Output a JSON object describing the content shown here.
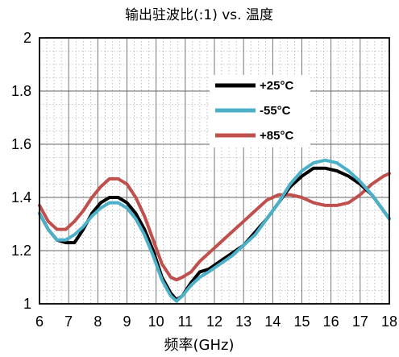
{
  "chart_data": {
    "type": "line",
    "title": "输出驻波比(:1) vs. 温度",
    "xlabel": "频率(GHz)",
    "ylabel": "",
    "xlim": [
      6,
      18
    ],
    "ylim": [
      1,
      2
    ],
    "x_ticks": [
      "6",
      "7",
      "8",
      "9",
      "10",
      "11",
      "12",
      "13",
      "14",
      "15",
      "16",
      "17",
      "18"
    ],
    "y_ticks": [
      "1",
      "1.2",
      "1.4",
      "1.6",
      "1.8",
      "2"
    ],
    "x_minor_step": 0.25,
    "y_minor_step": 0.05,
    "grid": true,
    "legend_position": "top-right",
    "series": [
      {
        "name": "+25°C",
        "color": "#000000",
        "points": [
          [
            6.0,
            1.34
          ],
          [
            6.3,
            1.28
          ],
          [
            6.6,
            1.24
          ],
          [
            6.9,
            1.23
          ],
          [
            7.2,
            1.23
          ],
          [
            7.5,
            1.28
          ],
          [
            7.8,
            1.34
          ],
          [
            8.1,
            1.38
          ],
          [
            8.4,
            1.4
          ],
          [
            8.7,
            1.4
          ],
          [
            9.0,
            1.38
          ],
          [
            9.3,
            1.34
          ],
          [
            9.6,
            1.28
          ],
          [
            9.9,
            1.2
          ],
          [
            10.2,
            1.1
          ],
          [
            10.5,
            1.04
          ],
          [
            10.7,
            1.015
          ],
          [
            10.9,
            1.03
          ],
          [
            11.2,
            1.08
          ],
          [
            11.5,
            1.12
          ],
          [
            11.8,
            1.13
          ],
          [
            12.2,
            1.16
          ],
          [
            12.6,
            1.19
          ],
          [
            13.0,
            1.22
          ],
          [
            13.4,
            1.27
          ],
          [
            13.8,
            1.32
          ],
          [
            14.2,
            1.38
          ],
          [
            14.6,
            1.44
          ],
          [
            15.0,
            1.48
          ],
          [
            15.4,
            1.51
          ],
          [
            15.8,
            1.51
          ],
          [
            16.2,
            1.5
          ],
          [
            16.6,
            1.48
          ],
          [
            17.0,
            1.45
          ],
          [
            17.4,
            1.41
          ],
          [
            17.8,
            1.35
          ],
          [
            18.0,
            1.32
          ]
        ]
      },
      {
        "name": "-55°C",
        "color": "#4bb0c8",
        "points": [
          [
            6.0,
            1.34
          ],
          [
            6.3,
            1.28
          ],
          [
            6.6,
            1.24
          ],
          [
            6.9,
            1.24
          ],
          [
            7.2,
            1.26
          ],
          [
            7.5,
            1.29
          ],
          [
            7.8,
            1.33
          ],
          [
            8.1,
            1.36
          ],
          [
            8.4,
            1.38
          ],
          [
            8.7,
            1.38
          ],
          [
            9.0,
            1.36
          ],
          [
            9.3,
            1.32
          ],
          [
            9.6,
            1.26
          ],
          [
            9.9,
            1.18
          ],
          [
            10.2,
            1.09
          ],
          [
            10.5,
            1.03
          ],
          [
            10.7,
            1.01
          ],
          [
            10.9,
            1.03
          ],
          [
            11.2,
            1.07
          ],
          [
            11.5,
            1.1
          ],
          [
            11.8,
            1.12
          ],
          [
            12.2,
            1.15
          ],
          [
            12.6,
            1.18
          ],
          [
            13.0,
            1.22
          ],
          [
            13.4,
            1.26
          ],
          [
            13.8,
            1.32
          ],
          [
            14.2,
            1.38
          ],
          [
            14.6,
            1.45
          ],
          [
            15.0,
            1.5
          ],
          [
            15.4,
            1.53
          ],
          [
            15.8,
            1.54
          ],
          [
            16.2,
            1.53
          ],
          [
            16.6,
            1.5
          ],
          [
            17.0,
            1.46
          ],
          [
            17.4,
            1.41
          ],
          [
            17.8,
            1.35
          ],
          [
            18.0,
            1.32
          ]
        ]
      },
      {
        "name": "+85°C",
        "color": "#c0504d",
        "points": [
          [
            6.0,
            1.37
          ],
          [
            6.3,
            1.31
          ],
          [
            6.6,
            1.28
          ],
          [
            6.9,
            1.28
          ],
          [
            7.2,
            1.31
          ],
          [
            7.5,
            1.35
          ],
          [
            7.8,
            1.4
          ],
          [
            8.1,
            1.44
          ],
          [
            8.4,
            1.47
          ],
          [
            8.7,
            1.47
          ],
          [
            9.0,
            1.45
          ],
          [
            9.3,
            1.4
          ],
          [
            9.6,
            1.33
          ],
          [
            9.9,
            1.24
          ],
          [
            10.2,
            1.15
          ],
          [
            10.5,
            1.1
          ],
          [
            10.7,
            1.09
          ],
          [
            10.9,
            1.1
          ],
          [
            11.2,
            1.12
          ],
          [
            11.5,
            1.16
          ],
          [
            11.8,
            1.19
          ],
          [
            12.2,
            1.23
          ],
          [
            12.6,
            1.27
          ],
          [
            13.0,
            1.31
          ],
          [
            13.4,
            1.35
          ],
          [
            13.8,
            1.39
          ],
          [
            14.2,
            1.41
          ],
          [
            14.6,
            1.41
          ],
          [
            15.0,
            1.4
          ],
          [
            15.4,
            1.38
          ],
          [
            15.8,
            1.37
          ],
          [
            16.2,
            1.37
          ],
          [
            16.6,
            1.38
          ],
          [
            17.0,
            1.41
          ],
          [
            17.4,
            1.45
          ],
          [
            17.8,
            1.48
          ],
          [
            18.0,
            1.49
          ]
        ]
      }
    ]
  }
}
